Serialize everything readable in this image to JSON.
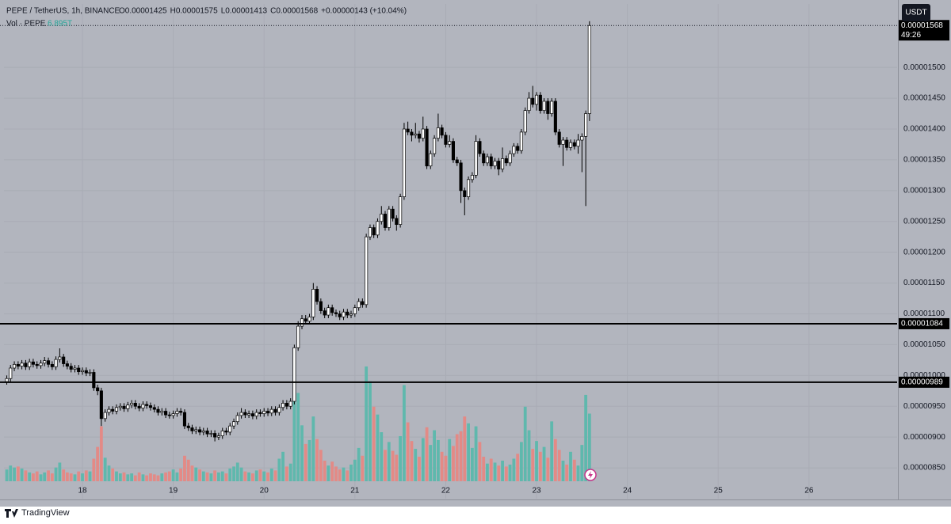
{
  "chart_data": {
    "type": "candlestick",
    "header": {
      "symbol": "PEPE / TetherUS, 1h, BINANCE",
      "ohlc": [
        "O0.00001425",
        "H0.00001575",
        "L0.00001413",
        "C0.00001568",
        "+0.00000143 (+10.04%)"
      ],
      "volume_title": "Vol · PEPE",
      "volume_last": "6.895T",
      "currency": "USDT",
      "countdown": "49:26",
      "brand": "TradingView"
    },
    "x": [
      17.167,
      17.208,
      17.25,
      17.292,
      17.333,
      17.375,
      17.417,
      17.458,
      17.5,
      17.542,
      17.583,
      17.625,
      17.667,
      17.708,
      17.75,
      17.792,
      17.833,
      17.875,
      17.917,
      17.958,
      18,
      18.042,
      18.083,
      18.125,
      18.167,
      18.208,
      18.25,
      18.292,
      18.333,
      18.375,
      18.417,
      18.458,
      18.5,
      18.542,
      18.583,
      18.625,
      18.667,
      18.708,
      18.75,
      18.792,
      18.833,
      18.875,
      18.917,
      18.958,
      19,
      19.042,
      19.083,
      19.125,
      19.167,
      19.208,
      19.25,
      19.292,
      19.333,
      19.375,
      19.417,
      19.458,
      19.5,
      19.542,
      19.583,
      19.625,
      19.667,
      19.708,
      19.75,
      19.792,
      19.833,
      19.875,
      19.917,
      19.958,
      20,
      20.042,
      20.083,
      20.125,
      20.167,
      20.208,
      20.25,
      20.292,
      20.333,
      20.375,
      20.417,
      20.458,
      20.5,
      20.542,
      20.583,
      20.625,
      20.667,
      20.708,
      20.75,
      20.792,
      20.833,
      20.875,
      20.917,
      20.958,
      21,
      21.042,
      21.083,
      21.125,
      21.167,
      21.208,
      21.25,
      21.292,
      21.333,
      21.375,
      21.417,
      21.458,
      21.5,
      21.542,
      21.583,
      21.625,
      21.667,
      21.708,
      21.75,
      21.792,
      21.833,
      21.875,
      21.917,
      21.958,
      22,
      22.042,
      22.083,
      22.125,
      22.167,
      22.208,
      22.25,
      22.292,
      22.333,
      22.375,
      22.417,
      22.458,
      22.5,
      22.542,
      22.583,
      22.625,
      22.667,
      22.708,
      22.75,
      22.792,
      22.833,
      22.875,
      22.917,
      22.958,
      23,
      23.042,
      23.083,
      23.125,
      23.167,
      23.208,
      23.25,
      23.292,
      23.333,
      23.375,
      23.417,
      23.458,
      23.5,
      23.542,
      23.583
    ],
    "open": [
      9.9e-06,
      9.95e-06,
      1.012e-05,
      1.018e-05,
      1.015e-05,
      1.02e-05,
      1.014e-05,
      1.022e-05,
      1.018e-05,
      1.016e-05,
      1.02e-05,
      1.024e-05,
      1.018e-05,
      1.014e-05,
      1.026e-05,
      1.03e-05,
      1.019e-05,
      1.015e-05,
      1.01e-05,
      1.012e-05,
      1.006e-05,
      1.008e-05,
      1.004e-05,
      1.005e-05,
      9.8e-06,
      9.75e-06,
      9.3e-06,
      9.4e-06,
      9.45e-06,
      9.42e-06,
      9.48e-06,
      9.5e-06,
      9.46e-06,
      9.52e-06,
      9.55e-06,
      9.5e-06,
      9.47e-06,
      9.53e-06,
      9.51e-06,
      9.48e-06,
      9.45e-06,
      9.4e-06,
      9.42e-06,
      9.36e-06,
      9.35e-06,
      9.38e-06,
      9.42e-06,
      9.4e-06,
      9.18e-06,
      9.15e-06,
      9.1e-06,
      9.12e-06,
      9.08e-06,
      9.1e-06,
      9.05e-06,
      9.06e-06,
      9e-06,
      9.02e-06,
      9.1e-06,
      9.08e-06,
      9.18e-06,
      9.25e-06,
      9.35e-06,
      9.4e-06,
      9.36e-06,
      9.38e-06,
      9.34e-06,
      9.4e-06,
      9.38e-06,
      9.42e-06,
      9.39e-06,
      9.45e-06,
      9.4e-06,
      9.48e-06,
      9.55e-06,
      9.5e-06,
      9.58e-06,
      1.045e-05,
      1.08e-05,
      1.092e-05,
      1.088e-05,
      1.095e-05,
      1.14e-05,
      1.12e-05,
      1.105e-05,
      1.098e-05,
      1.11e-05,
      1.102e-05,
      1.1e-05,
      1.095e-05,
      1.103e-05,
      1.098e-05,
      1.1e-05,
      1.11e-05,
      1.12e-05,
      1.115e-05,
      1.225e-05,
      1.24e-05,
      1.228e-05,
      1.25e-05,
      1.262e-05,
      1.24e-05,
      1.27e-05,
      1.255e-05,
      1.245e-05,
      1.29e-05,
      1.4e-05,
      1.395e-05,
      1.39e-05,
      1.392e-05,
      1.385e-05,
      1.4e-05,
      1.34e-05,
      1.36e-05,
      1.385e-05,
      1.402e-05,
      1.39e-05,
      1.375e-05,
      1.38e-05,
      1.35e-05,
      1.345e-05,
      1.3e-05,
      1.29e-05,
      1.318e-05,
      1.325e-05,
      1.38e-05,
      1.36e-05,
      1.345e-05,
      1.355e-05,
      1.34e-05,
      1.348e-05,
      1.335e-05,
      1.352e-05,
      1.345e-05,
      1.36e-05,
      1.372e-05,
      1.365e-05,
      1.395e-05,
      1.43e-05,
      1.45e-05,
      1.44e-05,
      1.455e-05,
      1.43e-05,
      1.445e-05,
      1.425e-05,
      1.445e-05,
      1.395e-05,
      1.375e-05,
      1.382e-05,
      1.37e-05,
      1.378e-05,
      1.372e-05,
      1.382e-05,
      1.388e-05,
      1.425e-05
    ],
    "high": [
      1e-05,
      1.017e-05,
      1.023e-05,
      1.023e-05,
      1.025e-05,
      1.025e-05,
      1.027e-05,
      1.027e-05,
      1.023e-05,
      1.025e-05,
      1.03e-05,
      1.029e-05,
      1.023e-05,
      1.031e-05,
      1.044e-05,
      1.035e-05,
      1.024e-05,
      1.02e-05,
      1.017e-05,
      1.017e-05,
      1.013e-05,
      1.013e-05,
      1.01e-05,
      1.01e-05,
      9.85e-06,
      9.8e-06,
      9.45e-06,
      9.5e-06,
      9.5e-06,
      9.53e-06,
      9.55e-06,
      9.55e-06,
      9.57e-06,
      9.6e-06,
      9.6e-06,
      9.55e-06,
      9.58e-06,
      9.58e-06,
      9.56e-06,
      9.53e-06,
      9.5e-06,
      9.47e-06,
      9.47e-06,
      9.41e-06,
      9.43e-06,
      9.47e-06,
      9.47e-06,
      9.45e-06,
      9.23e-06,
      9.2e-06,
      9.17e-06,
      9.17e-06,
      9.15e-06,
      9.15e-06,
      9.11e-06,
      9.11e-06,
      9.07e-06,
      9.15e-06,
      9.15e-06,
      9.23e-06,
      9.3e-06,
      9.4e-06,
      9.47e-06,
      9.45e-06,
      9.43e-06,
      9.43e-06,
      9.45e-06,
      9.45e-06,
      9.47e-06,
      9.47e-06,
      9.5e-06,
      9.5e-06,
      9.53e-06,
      9.6e-06,
      9.6e-06,
      9.63e-06,
      1.05e-05,
      1.088e-05,
      1.098e-05,
      1.098e-05,
      1.1e-05,
      1.15e-05,
      1.145e-05,
      1.125e-05,
      1.11e-05,
      1.115e-05,
      1.115e-05,
      1.107e-05,
      1.105e-05,
      1.108e-05,
      1.108e-05,
      1.105e-05,
      1.115e-05,
      1.125e-05,
      1.125e-05,
      1.23e-05,
      1.245e-05,
      1.245e-05,
      1.255e-05,
      1.275e-05,
      1.267e-05,
      1.275e-05,
      1.275e-05,
      1.26e-05,
      1.295e-05,
      1.41e-05,
      1.412e-05,
      1.4e-05,
      1.41e-05,
      1.397e-05,
      1.42e-05,
      1.405e-05,
      1.365e-05,
      1.39e-05,
      1.425e-05,
      1.407e-05,
      1.395e-05,
      1.39e-05,
      1.385e-05,
      1.355e-05,
      1.35e-05,
      1.305e-05,
      1.323e-05,
      1.33e-05,
      1.39e-05,
      1.385e-05,
      1.365e-05,
      1.36e-05,
      1.36e-05,
      1.353e-05,
      1.353e-05,
      1.37e-05,
      1.357e-05,
      1.365e-05,
      1.377e-05,
      1.377e-05,
      1.4e-05,
      1.435e-05,
      1.46e-05,
      1.47e-05,
      1.46e-05,
      1.46e-05,
      1.45e-05,
      1.45e-05,
      1.45e-05,
      1.45e-05,
      1.4e-05,
      1.387e-05,
      1.387e-05,
      1.383e-05,
      1.383e-05,
      1.392e-05,
      1.393e-05,
      1.43e-05,
      1.575e-05
    ],
    "low": [
      9.85e-06,
      9.9e-06,
      1.007e-05,
      1.01e-05,
      1.01e-05,
      1.009e-05,
      1.009e-05,
      1.013e-05,
      1.011e-05,
      1.011e-05,
      1.015e-05,
      1.013e-05,
      1.009e-05,
      1.009e-05,
      1.021e-05,
      1.014e-05,
      1.01e-05,
      1.005e-05,
      1.005e-05,
      1.001e-05,
      1.001e-05,
      9.99e-06,
      9.99e-06,
      9.75e-06,
      9.68e-06,
      9.18e-06,
      9.25e-06,
      9.35e-06,
      9.37e-06,
      9.37e-06,
      9.43e-06,
      9.41e-06,
      9.41e-06,
      9.47e-06,
      9.45e-06,
      9.42e-06,
      9.42e-06,
      9.46e-06,
      9.43e-06,
      9.4e-06,
      9.35e-06,
      9.35e-06,
      9.31e-06,
      9.3e-06,
      9.3e-06,
      9.33e-06,
      9.35e-06,
      9.13e-06,
      9.1e-06,
      9.05e-06,
      9.05e-06,
      9.03e-06,
      9.03e-06,
      9e-06,
      9e-06,
      8.93e-06,
      8.95e-06,
      8.97e-06,
      9.03e-06,
      9.03e-06,
      9.13e-06,
      9.2e-06,
      9.3e-06,
      9.31e-06,
      9.31e-06,
      9.29e-06,
      9.29e-06,
      9.33e-06,
      9.33e-06,
      9.34e-06,
      9.34e-06,
      9.35e-06,
      9.35e-06,
      9.43e-06,
      9.45e-06,
      9.45e-06,
      9.53e-06,
      1.04e-05,
      1.075e-05,
      1.083e-05,
      1.083e-05,
      1.09e-05,
      1.115e-05,
      1.1e-05,
      1.093e-05,
      1.093e-05,
      1.097e-05,
      1.095e-05,
      1.09e-05,
      1.09e-05,
      1.093e-05,
      1.093e-05,
      1.095e-05,
      1.105e-05,
      1.11e-05,
      1.11e-05,
      1.22e-05,
      1.223e-05,
      1.223e-05,
      1.245e-05,
      1.235e-05,
      1.235e-05,
      1.25e-05,
      1.235e-05,
      1.24e-05,
      1.285e-05,
      1.39e-05,
      1.38e-05,
      1.385e-05,
      1.378e-05,
      1.38e-05,
      1.335e-05,
      1.335e-05,
      1.355e-05,
      1.38e-05,
      1.385e-05,
      1.37e-05,
      1.37e-05,
      1.345e-05,
      1.34e-05,
      1.28e-05,
      1.26e-05,
      1.285e-05,
      1.313e-05,
      1.32e-05,
      1.355e-05,
      1.34e-05,
      1.34e-05,
      1.335e-05,
      1.335e-05,
      1.325e-05,
      1.33e-05,
      1.34e-05,
      1.34e-05,
      1.355e-05,
      1.36e-05,
      1.36e-05,
      1.39e-05,
      1.425e-05,
      1.435e-05,
      1.43e-05,
      1.425e-05,
      1.425e-05,
      1.415e-05,
      1.42e-05,
      1.39e-05,
      1.37e-05,
      1.34e-05,
      1.365e-05,
      1.365e-05,
      1.367e-05,
      1.36e-05,
      1.33e-05,
      1.275e-05,
      1.413e-05
    ],
    "close": [
      9.95e-06,
      1.012e-05,
      1.018e-05,
      1.015e-05,
      1.02e-05,
      1.014e-05,
      1.022e-05,
      1.018e-05,
      1.016e-05,
      1.02e-05,
      1.024e-05,
      1.018e-05,
      1.014e-05,
      1.026e-05,
      1.03e-05,
      1.019e-05,
      1.015e-05,
      1.01e-05,
      1.012e-05,
      1.006e-05,
      1.008e-05,
      1.004e-05,
      1.005e-05,
      9.8e-06,
      9.75e-06,
      9.3e-06,
      9.4e-06,
      9.45e-06,
      9.42e-06,
      9.48e-06,
      9.5e-06,
      9.46e-06,
      9.52e-06,
      9.55e-06,
      9.5e-06,
      9.47e-06,
      9.53e-06,
      9.51e-06,
      9.48e-06,
      9.45e-06,
      9.4e-06,
      9.42e-06,
      9.36e-06,
      9.35e-06,
      9.38e-06,
      9.42e-06,
      9.4e-06,
      9.18e-06,
      9.15e-06,
      9.1e-06,
      9.12e-06,
      9.08e-06,
      9.1e-06,
      9.05e-06,
      9.06e-06,
      9e-06,
      9.02e-06,
      9.1e-06,
      9.08e-06,
      9.18e-06,
      9.25e-06,
      9.35e-06,
      9.4e-06,
      9.36e-06,
      9.38e-06,
      9.34e-06,
      9.4e-06,
      9.38e-06,
      9.42e-06,
      9.39e-06,
      9.45e-06,
      9.4e-06,
      9.48e-06,
      9.55e-06,
      9.5e-06,
      9.58e-06,
      1.045e-05,
      1.08e-05,
      1.092e-05,
      1.088e-05,
      1.095e-05,
      1.14e-05,
      1.12e-05,
      1.105e-05,
      1.098e-05,
      1.11e-05,
      1.102e-05,
      1.1e-05,
      1.095e-05,
      1.103e-05,
      1.098e-05,
      1.1e-05,
      1.11e-05,
      1.12e-05,
      1.115e-05,
      1.225e-05,
      1.24e-05,
      1.228e-05,
      1.25e-05,
      1.262e-05,
      1.24e-05,
      1.27e-05,
      1.255e-05,
      1.245e-05,
      1.29e-05,
      1.4e-05,
      1.395e-05,
      1.39e-05,
      1.392e-05,
      1.385e-05,
      1.4e-05,
      1.34e-05,
      1.36e-05,
      1.385e-05,
      1.402e-05,
      1.39e-05,
      1.375e-05,
      1.38e-05,
      1.35e-05,
      1.345e-05,
      1.3e-05,
      1.29e-05,
      1.318e-05,
      1.325e-05,
      1.38e-05,
      1.36e-05,
      1.345e-05,
      1.355e-05,
      1.34e-05,
      1.348e-05,
      1.335e-05,
      1.352e-05,
      1.345e-05,
      1.36e-05,
      1.372e-05,
      1.365e-05,
      1.395e-05,
      1.43e-05,
      1.45e-05,
      1.44e-05,
      1.455e-05,
      1.43e-05,
      1.445e-05,
      1.425e-05,
      1.445e-05,
      1.395e-05,
      1.375e-05,
      1.382e-05,
      1.37e-05,
      1.378e-05,
      1.372e-05,
      1.382e-05,
      1.388e-05,
      1.425e-05,
      1.568e-05
    ],
    "volume": [
      1.2,
      1.6,
      1.4,
      1.5,
      1.3,
      1.1,
      0.9,
      0.8,
      1.0,
      0.7,
      0.9,
      1.1,
      0.8,
      1.4,
      1.9,
      1.2,
      0.9,
      0.8,
      0.7,
      1.0,
      0.8,
      1.1,
      1.0,
      2.3,
      3.5,
      5.6,
      2.4,
      1.6,
      1.3,
      1.0,
      0.8,
      0.9,
      0.7,
      0.8,
      0.6,
      0.9,
      0.7,
      0.6,
      0.8,
      0.7,
      0.6,
      0.8,
      0.9,
      1.0,
      1.2,
      0.9,
      1.3,
      2.6,
      2.2,
      1.6,
      1.4,
      1.2,
      1.0,
      0.9,
      0.8,
      1.1,
      0.9,
      1.0,
      0.8,
      1.3,
      1.5,
      1.9,
      1.4,
      1.0,
      0.9,
      0.8,
      1.1,
      1.2,
      1.0,
      0.9,
      1.3,
      1.1,
      2.3,
      3.0,
      1.5,
      1.8,
      12.1,
      9.0,
      5.7,
      3.8,
      4.2,
      6.6,
      4.3,
      3.2,
      2.1,
      1.6,
      2.0,
      1.5,
      1.2,
      1.4,
      1.1,
      1.7,
      2.2,
      3.4,
      2.6,
      11.7,
      10.2,
      7.6,
      6.8,
      5.0,
      3.2,
      4.0,
      3.1,
      2.7,
      4.6,
      9.8,
      6.0,
      4.1,
      3.3,
      2.5,
      4.4,
      5.5,
      3.7,
      5.2,
      4.2,
      3.0,
      2.6,
      4.3,
      3.6,
      4.8,
      5.1,
      6.6,
      5.9,
      3.4,
      5.6,
      4.0,
      2.5,
      1.8,
      2.3,
      1.9,
      1.6,
      2.1,
      1.5,
      1.7,
      2.3,
      2.8,
      4.0,
      7.6,
      5.2,
      3.3,
      4.1,
      3.0,
      3.5,
      2.4,
      6.1,
      4.3,
      3.2,
      2.1,
      1.7,
      3.0,
      2.2,
      1.6,
      3.7,
      8.8,
      6.895
    ],
    "up_color": "#ffffff",
    "down_color": "#000000",
    "wick_color": "#000000",
    "volume_up_color": "#5fb8ad",
    "volume_down_color": "#e38a86",
    "xlim": [
      17.136,
      26.97
    ],
    "xticks": [
      18,
      19,
      20,
      21,
      22,
      23,
      24,
      25,
      26
    ],
    "ylim": [
      8e-06,
      1.603e-05
    ],
    "yticks": [
      {
        "value": 8.5e-06,
        "label": "0.00000850"
      },
      {
        "value": 9e-06,
        "label": "0.00000900"
      },
      {
        "value": 9.5e-06,
        "label": "0.00000950"
      },
      {
        "value": 1e-05,
        "label": "0.00001000"
      },
      {
        "value": 1.05e-05,
        "label": "0.00001050"
      },
      {
        "value": 1.1e-05,
        "label": "0.00001100"
      },
      {
        "value": 1.15e-05,
        "label": "0.00001150"
      },
      {
        "value": 1.2e-05,
        "label": "0.00001200"
      },
      {
        "value": 1.25e-05,
        "label": "0.00001250"
      },
      {
        "value": 1.3e-05,
        "label": "0.00001300"
      },
      {
        "value": 1.35e-05,
        "label": "0.00001350"
      },
      {
        "value": 1.4e-05,
        "label": "0.00001400"
      },
      {
        "value": 1.45e-05,
        "label": "0.00001450"
      },
      {
        "value": 1.5e-05,
        "label": "0.00001500"
      }
    ],
    "hlines": [
      {
        "value": 1.084e-05,
        "label": "0.00001084"
      },
      {
        "value": 9.89e-06,
        "label": "0.00000989"
      }
    ],
    "last_price": {
      "value": 1.568e-05,
      "label": "0.00001568"
    },
    "grid": true
  }
}
